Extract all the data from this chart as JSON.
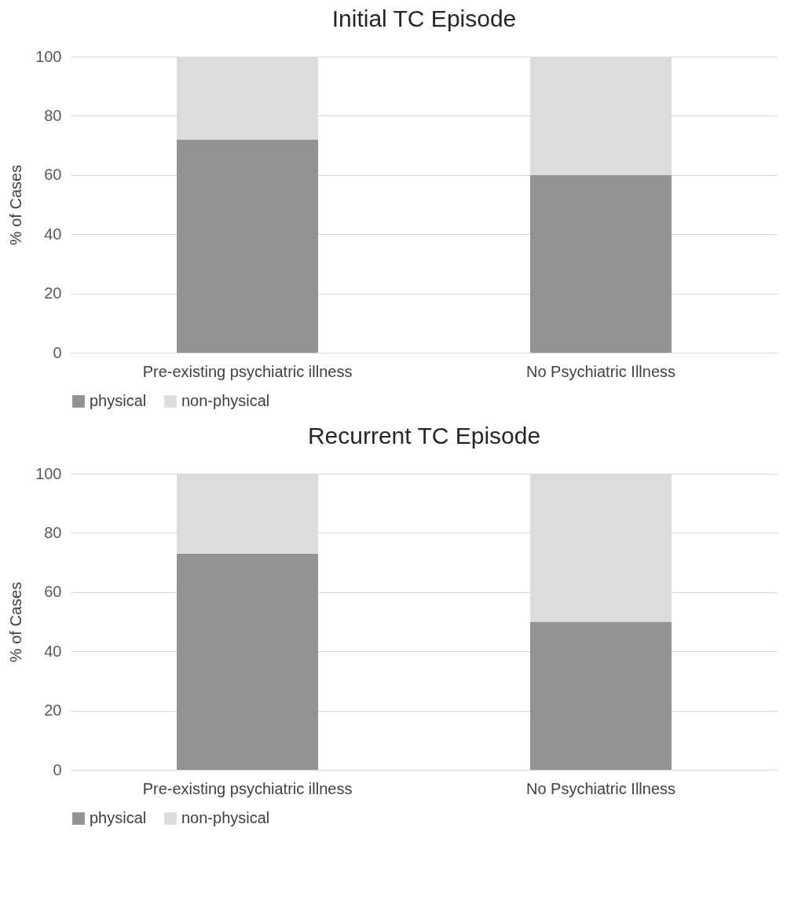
{
  "chart_data": [
    {
      "type": "bar",
      "title": "Initial TC Episode",
      "ylabel": "% of Cases",
      "categories": [
        "Pre-existing psychiatric illness",
        "No Psychiatric Illness"
      ],
      "stacked": true,
      "series": [
        {
          "name": "physical",
          "color": "#939393",
          "values": [
            72,
            60
          ]
        },
        {
          "name": "non-physical",
          "color": "#dcdcdc",
          "values": [
            28,
            40
          ]
        }
      ],
      "ylim": [
        0,
        100
      ],
      "yticks": [
        0,
        20,
        40,
        60,
        80,
        100
      ],
      "grid": "y",
      "legend": "bottom"
    },
    {
      "type": "bar",
      "title": "Recurrent TC Episode",
      "ylabel": "% of Cases",
      "categories": [
        "Pre-existing psychiatric illness",
        "No Psychiatric Illness"
      ],
      "stacked": true,
      "series": [
        {
          "name": "physical",
          "color": "#939393",
          "values": [
            73,
            50
          ]
        },
        {
          "name": "non-physical",
          "color": "#dcdcdc",
          "values": [
            27,
            50
          ]
        }
      ],
      "ylim": [
        0,
        100
      ],
      "yticks": [
        0,
        20,
        40,
        60,
        80,
        100
      ],
      "grid": "y",
      "legend": "bottom"
    }
  ]
}
